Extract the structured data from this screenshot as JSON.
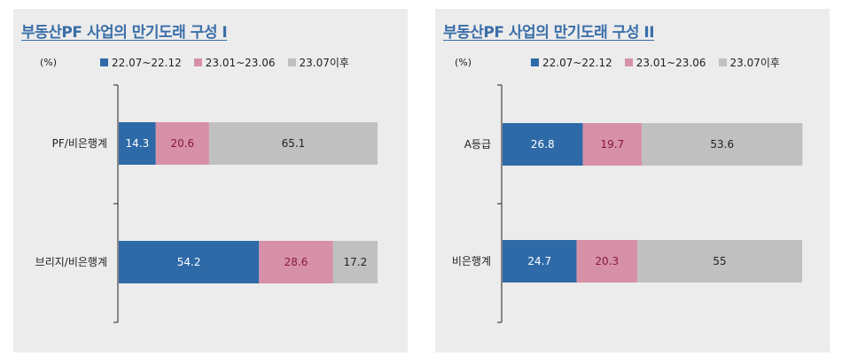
{
  "chart_data": [
    {
      "type": "bar",
      "orientation": "horizontal",
      "stacked": true,
      "title": "부동산PF 사업의 만기도래 구성 I",
      "unit": "(%)",
      "categories": [
        "PF/비은행계",
        "브리지/비은행계"
      ],
      "series": [
        {
          "name": "22.07~22.12",
          "color": "#2e6aa8",
          "label_color": "#ffffff",
          "values": [
            14.3,
            54.2
          ]
        },
        {
          "name": "23.01~23.06",
          "color": "#d690a8",
          "label_color": "#8a1a3a",
          "values": [
            20.6,
            28.6
          ]
        },
        {
          "name": "23.07이후",
          "color": "#c0c0c0",
          "label_color": "#222222",
          "values": [
            65.1,
            17.2
          ]
        }
      ],
      "xlim": [
        0,
        100
      ],
      "legend": "top",
      "grid": false
    },
    {
      "type": "bar",
      "orientation": "horizontal",
      "stacked": true,
      "title": "부동산PF 사업의 만기도래 구성 II",
      "unit": "(%)",
      "categories": [
        "A등급",
        "비은행계"
      ],
      "series": [
        {
          "name": "22.07~22.12",
          "color": "#2e6aa8",
          "label_color": "#ffffff",
          "values": [
            26.8,
            24.7
          ]
        },
        {
          "name": "23.01~23.06",
          "color": "#d690a8",
          "label_color": "#8a1a3a",
          "values": [
            19.7,
            20.3
          ]
        },
        {
          "name": "23.07이후",
          "color": "#c0c0c0",
          "label_color": "#222222",
          "values": [
            53.6,
            55
          ]
        }
      ],
      "xlim": [
        0,
        100
      ],
      "legend": "top",
      "grid": false
    }
  ]
}
